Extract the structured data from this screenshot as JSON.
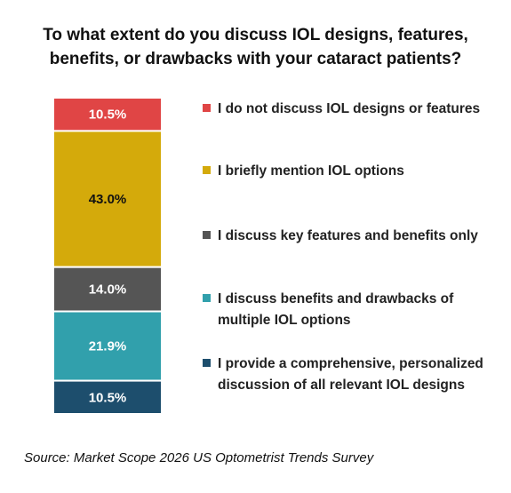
{
  "chart_data": {
    "type": "stacked_bar",
    "title": "To what extent do you discuss IOL designs, features, benefits, or drawbacks with your cataract patients?",
    "source": "Source: Market Scope 2026 US Optometrist Trends Survey",
    "series": [
      {
        "name": "I do not discuss IOL designs or features",
        "color": "#e04545",
        "values": [
          10.5
        ],
        "value_labels": [
          "10.5%"
        ]
      },
      {
        "name": "I briefly mention IOL options",
        "color": "#d4aa0b",
        "values": [
          43.0
        ],
        "value_labels": [
          "43.0%"
        ]
      },
      {
        "name": "I discuss key features and benefits only",
        "color": "#555555",
        "values": [
          14.0
        ],
        "value_labels": [
          "14.0%"
        ]
      },
      {
        "name": "I discuss benefits and drawbacks of multiple IOL options",
        "color": "#31a0ac",
        "values": [
          21.9
        ],
        "value_labels": [
          "21.9%"
        ]
      },
      {
        "name": "I provide a comprehensive, personalized discussion of all relevant IOL designs",
        "color": "#1d4e6d",
        "values": [
          10.5
        ],
        "value_labels": [
          "10.5%"
        ]
      }
    ]
  }
}
